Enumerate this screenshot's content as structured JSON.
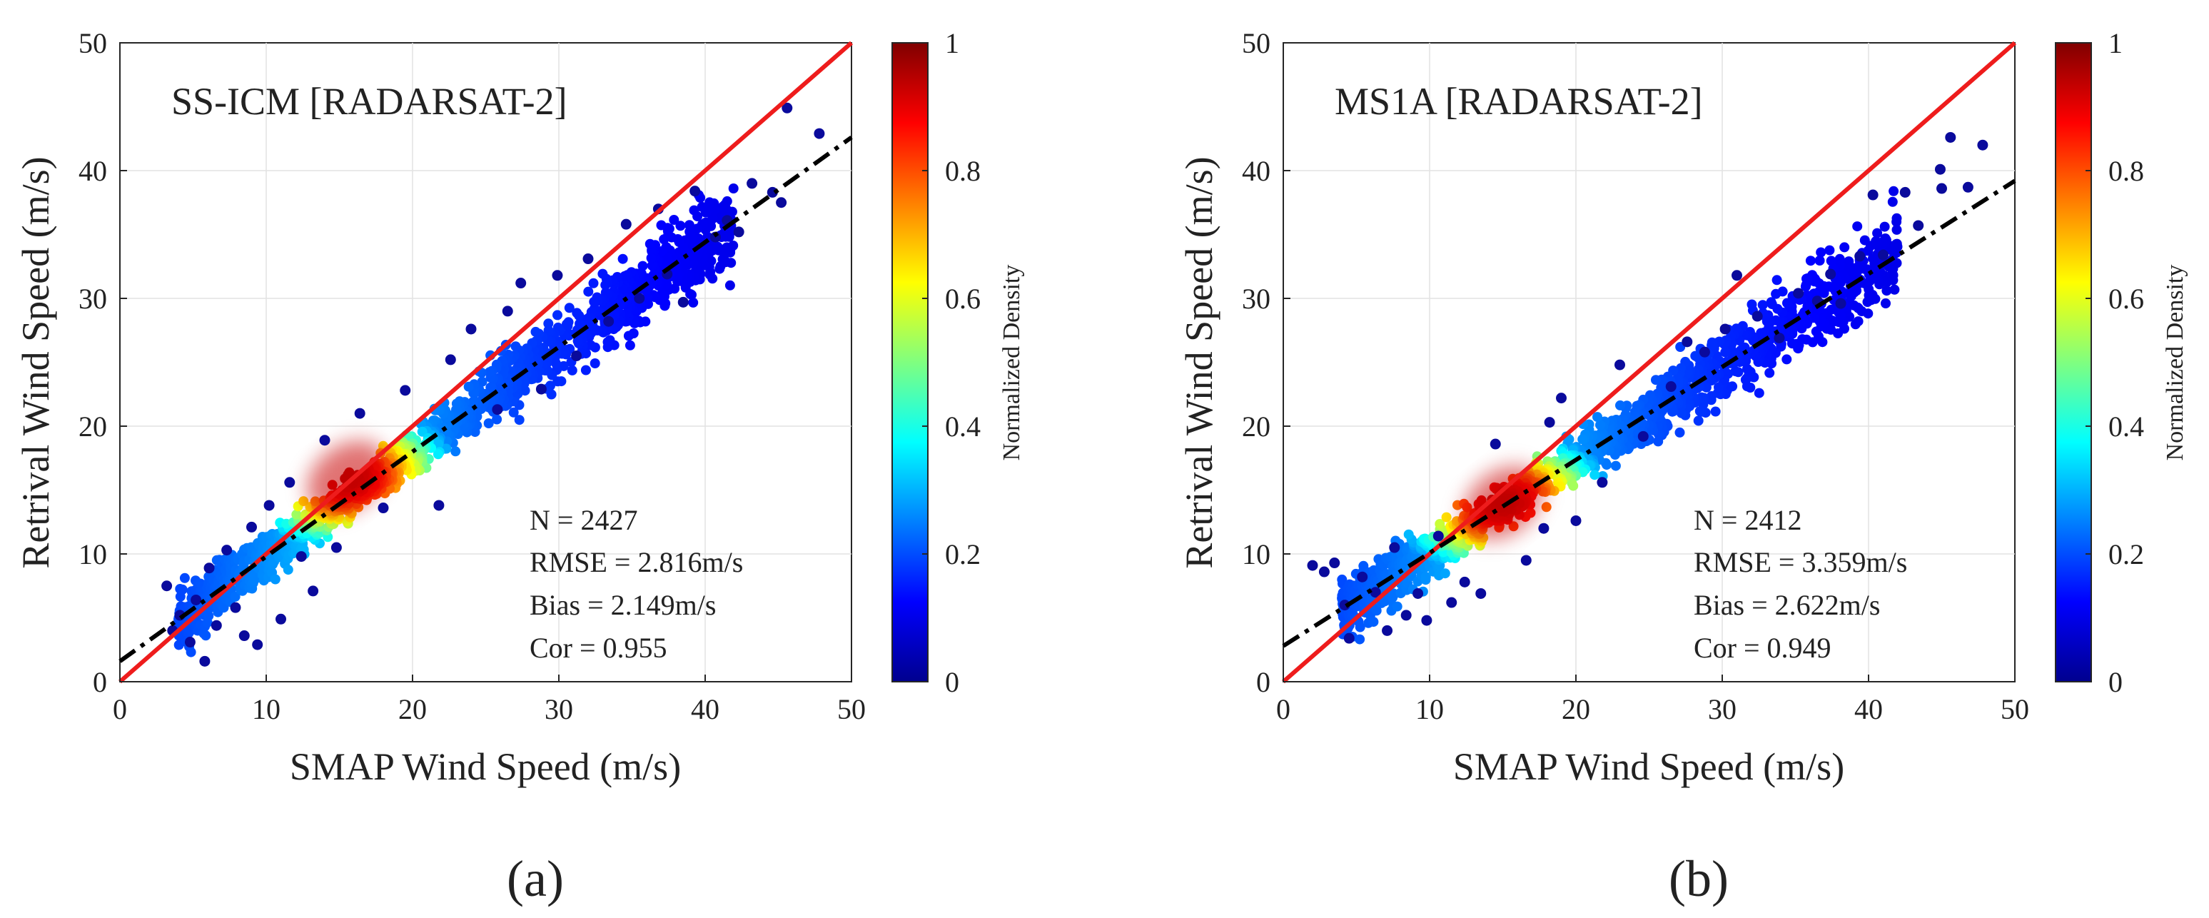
{
  "chart_data": [
    {
      "type": "scatter",
      "panel_label": "(a)",
      "title": "SS-ICM [RADARSAT-2]",
      "xlabel": "SMAP Wind Speed (m/s)",
      "ylabel": "Retrival Wind Speed (m/s)",
      "xlim": [
        0,
        50
      ],
      "ylim": [
        0,
        50
      ],
      "xticks": [
        "0",
        "10",
        "20",
        "30",
        "40",
        "50"
      ],
      "yticks": [
        "0",
        "10",
        "20",
        "30",
        "40",
        "50"
      ],
      "grid": true,
      "colorbar": {
        "label": "Normalized Density",
        "range": [
          0,
          1
        ],
        "ticks": [
          "0",
          "0.2",
          "0.4",
          "0.6",
          "0.8",
          "1"
        ]
      },
      "stats": {
        "n": "N = 2427",
        "rmse": "RMSE = 2.816m/s",
        "bias": "Bias = 2.149m/s",
        "cor": "Cor = 0.955"
      },
      "lines": [
        {
          "name": "1:1 line",
          "style": "solid",
          "color": "#ee1c1c",
          "points": [
            [
              0,
              0
            ],
            [
              50,
              50
            ]
          ]
        },
        {
          "name": "fit line",
          "style": "dashdot",
          "color": "#000000",
          "points": [
            [
              0,
              1.6
            ],
            [
              50,
              42.6
            ]
          ]
        }
      ],
      "density_core": {
        "x": 15.5,
        "y": 16
      },
      "sample_points": [
        [
          3.2,
          7.5
        ],
        [
          3.6,
          4.0
        ],
        [
          4.1,
          5.2
        ],
        [
          4.8,
          3.1
        ],
        [
          5.2,
          6.4
        ],
        [
          5.8,
          1.6
        ],
        [
          6.1,
          8.9
        ],
        [
          6.6,
          4.4
        ],
        [
          7.3,
          10.3
        ],
        [
          7.9,
          5.8
        ],
        [
          8.5,
          3.6
        ],
        [
          9.0,
          12.1
        ],
        [
          9.4,
          2.9
        ],
        [
          10.2,
          13.8
        ],
        [
          11.0,
          4.9
        ],
        [
          11.6,
          15.6
        ],
        [
          12.4,
          9.8
        ],
        [
          13.2,
          7.1
        ],
        [
          14.0,
          18.9
        ],
        [
          14.8,
          10.5
        ],
        [
          16.4,
          21.0
        ],
        [
          18.0,
          13.6
        ],
        [
          19.5,
          22.8
        ],
        [
          21.8,
          13.8
        ],
        [
          22.6,
          25.2
        ],
        [
          24.0,
          27.6
        ],
        [
          25.8,
          21.3
        ],
        [
          26.5,
          29.0
        ],
        [
          27.4,
          31.2
        ],
        [
          28.8,
          22.9
        ],
        [
          29.9,
          31.8
        ],
        [
          31.2,
          25.5
        ],
        [
          32.0,
          33.1
        ],
        [
          33.4,
          28.2
        ],
        [
          34.6,
          35.8
        ],
        [
          35.5,
          30.0
        ],
        [
          36.8,
          37.0
        ],
        [
          37.4,
          31.9
        ],
        [
          38.5,
          29.7
        ],
        [
          39.3,
          38.4
        ],
        [
          40.7,
          34.8
        ],
        [
          41.5,
          36.1
        ],
        [
          42.3,
          35.2
        ],
        [
          43.2,
          39.0
        ],
        [
          44.6,
          38.3
        ],
        [
          45.2,
          37.5
        ],
        [
          45.6,
          44.9
        ],
        [
          47.8,
          42.9
        ]
      ]
    },
    {
      "type": "scatter",
      "panel_label": "(b)",
      "title": "MS1A [RADARSAT-2]",
      "xlabel": "SMAP Wind Speed (m/s)",
      "ylabel": "Retrival Wind Speed (m/s)",
      "xlim": [
        0,
        50
      ],
      "ylim": [
        0,
        50
      ],
      "xticks": [
        "0",
        "10",
        "20",
        "30",
        "40",
        "50"
      ],
      "yticks": [
        "0",
        "10",
        "20",
        "30",
        "40",
        "50"
      ],
      "grid": true,
      "colorbar": {
        "label": "Normalized Density",
        "range": [
          0,
          1
        ],
        "ticks": [
          "0",
          "0.2",
          "0.4",
          "0.6",
          "0.8",
          "1"
        ]
      },
      "stats": {
        "n": "N = 2412",
        "rmse": "RMSE = 3.359m/s",
        "bias": "Bias = 2.622m/s",
        "cor": "Cor = 0.949"
      },
      "lines": [
        {
          "name": "1:1 line",
          "style": "solid",
          "color": "#ee1c1c",
          "points": [
            [
              0,
              0
            ],
            [
              50,
              50
            ]
          ]
        },
        {
          "name": "fit line",
          "style": "dashdot",
          "color": "#000000",
          "points": [
            [
              0,
              2.8
            ],
            [
              50,
              39.2
            ]
          ]
        }
      ],
      "density_core": {
        "x": 15,
        "y": 14
      },
      "sample_points": [
        [
          2.0,
          9.1
        ],
        [
          2.8,
          8.6
        ],
        [
          3.5,
          9.3
        ],
        [
          4.2,
          6.0
        ],
        [
          4.5,
          3.4
        ],
        [
          5.4,
          8.2
        ],
        [
          6.3,
          7.0
        ],
        [
          7.1,
          4.0
        ],
        [
          7.6,
          10.5
        ],
        [
          8.4,
          5.2
        ],
        [
          9.2,
          6.9
        ],
        [
          9.8,
          4.8
        ],
        [
          10.6,
          11.4
        ],
        [
          11.5,
          6.2
        ],
        [
          12.4,
          7.8
        ],
        [
          13.5,
          6.9
        ],
        [
          14.5,
          18.6
        ],
        [
          16.6,
          9.5
        ],
        [
          17.8,
          12.0
        ],
        [
          18.2,
          20.3
        ],
        [
          19.0,
          22.2
        ],
        [
          20.0,
          12.6
        ],
        [
          21.8,
          15.6
        ],
        [
          23.0,
          24.8
        ],
        [
          24.6,
          19.2
        ],
        [
          26.5,
          23.1
        ],
        [
          27.6,
          26.6
        ],
        [
          28.8,
          25.8
        ],
        [
          30.2,
          27.6
        ],
        [
          31.0,
          31.8
        ],
        [
          32.4,
          28.6
        ],
        [
          33.9,
          26.9
        ],
        [
          35.2,
          30.4
        ],
        [
          36.5,
          29.8
        ],
        [
          37.4,
          31.9
        ],
        [
          38.1,
          29.6
        ],
        [
          39.4,
          33.3
        ],
        [
          40.3,
          38.1
        ],
        [
          41.0,
          33.4
        ],
        [
          42.5,
          38.3
        ],
        [
          43.4,
          35.7
        ],
        [
          44.9,
          40.1
        ],
        [
          45.0,
          38.6
        ],
        [
          45.6,
          42.6
        ],
        [
          46.8,
          38.7
        ],
        [
          47.8,
          42.0
        ]
      ]
    }
  ]
}
